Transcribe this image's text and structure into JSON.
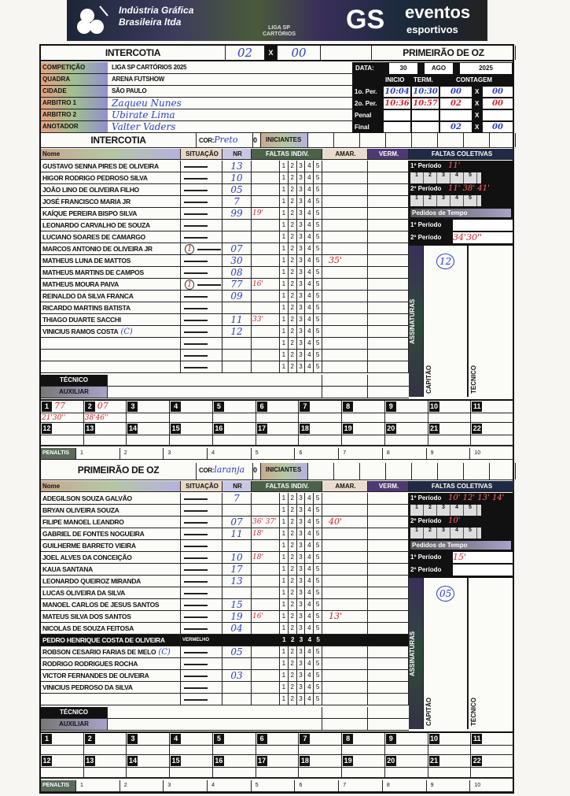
{
  "banner": {
    "company": "Indústria Gráfica Brasileira ltda",
    "center_logo": "LIGA SP CARTÓRIOS",
    "right_logo_big": "GS",
    "right_logo_1": "eventos",
    "right_logo_2": "esportivos"
  },
  "match": {
    "home": "INTERCOTIA",
    "home_score": "02",
    "x": "X",
    "away_score": "00",
    "away": "PRIMEIRÃO DE OZ"
  },
  "info": [
    {
      "label": "COMPETIÇÃO",
      "value": "LIGA SP CARTÓRIOS 2025"
    },
    {
      "label": "QUADRA",
      "value": "ARENA FUTSHOW"
    },
    {
      "label": "CIDADE",
      "value": "SÃO PAULO"
    },
    {
      "label": "ARBITRO 1",
      "value": "Zaqueu Nunes"
    },
    {
      "label": "ARBITRO 2",
      "value": "Ubirate Lima"
    },
    {
      "label": "ANOTADOR",
      "value": "Valter Vaders"
    }
  ],
  "date": {
    "label": "DATA:",
    "day": "30",
    "month": "AGO",
    "year": "2025",
    "inicio": "INICIO",
    "term": "TERM.",
    "contagem": "CONTAGEM"
  },
  "periods": [
    {
      "label": "1o. Per.",
      "inicio": "10:04",
      "term": "10:30",
      "home": "00",
      "away": "00"
    },
    {
      "label": "2o. Per.",
      "inicio": "10:36",
      "term": "10:57",
      "home": "02",
      "away": "00"
    },
    {
      "label": "Penal",
      "inicio": "",
      "term": "",
      "home": "",
      "away": ""
    },
    {
      "label": "Final",
      "inicio": "",
      "term": "",
      "home": "02",
      "away": "00"
    }
  ],
  "labels": {
    "cor": "COR:",
    "zero": "0",
    "iniciantes": "INICIANTES",
    "nome": "Nome",
    "situacao": "SITUAÇÃO",
    "nr": "NR",
    "faltas_indiv": "FALTAS INDIV.",
    "amar": "AMAR.",
    "verm": "VERM.",
    "faltas_coletivas": "FALTAS COLETIVAS",
    "p1": "1º Período",
    "p2": "2º Período",
    "pedidos": "Pedidos de Tempo",
    "assinaturas": "ASSINATURAS",
    "capitao": "CAPITÃO",
    "tecnico_v": "TÉCNICO",
    "tecnico": "TÉCNICO",
    "auxiliar": "AUXILIAR",
    "penaltis": "PENALTIS",
    "vermelho": "VERMELHO"
  },
  "team_a": {
    "name": "INTERCOTIA",
    "cor": "Preto",
    "players": [
      {
        "name": "GUSTAVO SENNA PIRES DE OLIVEIRA",
        "nr": "13"
      },
      {
        "name": "HIGOR RODRIGO PEDROSO SILVA",
        "nr": "10"
      },
      {
        "name": "JOÃO LINO DE OLIVEIRA FILHO",
        "nr": "05"
      },
      {
        "name": "JOSÉ FRANCISCO MARIA JR",
        "nr": "7"
      },
      {
        "name": "KAÍQUE PEREIRA BISPO SILVA",
        "nr": "99",
        "falta": "19'"
      },
      {
        "name": "LEONARDO CARVALHO DE SOUZA",
        "nr": ""
      },
      {
        "name": "LUCIANO SOARES DE CAMARGO",
        "nr": ""
      },
      {
        "name": "MARCOS ANTONIO DE OLIVEIRA JR",
        "nr": "07",
        "sit": "1"
      },
      {
        "name": "MATHEUS LUNA DE MATTOS",
        "nr": "30",
        "amar": "35'"
      },
      {
        "name": "MATHEUS MARTINS DE CAMPOS",
        "nr": "08"
      },
      {
        "name": "MATHEUS MOURA PAIVA",
        "nr": "77",
        "sit": "1",
        "falta": "16'"
      },
      {
        "name": "REINALDO DA SILVA FRANCA",
        "nr": "09"
      },
      {
        "name": "RICARDO MARTINS BATISTA",
        "nr": ""
      },
      {
        "name": "THIAGO DUARTE SACCHI",
        "nr": "11",
        "falta": "33'"
      },
      {
        "name": "VINICIUS RAMOS COSTA",
        "cap": "(C)",
        "nr": "12"
      },
      {
        "name": "",
        "nr": ""
      },
      {
        "name": "",
        "nr": ""
      },
      {
        "name": "",
        "nr": ""
      }
    ],
    "coletivas_p1": "11'",
    "coletivas_p2": "11' 38' 41'",
    "tempo_p1": "",
    "tempo_p2": "34'30''",
    "capitao_sig": "12",
    "goals": [
      {
        "n": "1",
        "player": "77",
        "time": "21'30''"
      },
      {
        "n": "2",
        "player": "07",
        "time": "38'46''"
      }
    ]
  },
  "team_b": {
    "name": "PRIMEIRÃO DE OZ",
    "cor": "laranja",
    "players": [
      {
        "name": "ADEGILSON SOUZA GALVÃO",
        "nr": "7"
      },
      {
        "name": "BRYAN OLIVEIRA SOUZA",
        "nr": ""
      },
      {
        "name": "FILIPE MANOEL LEANDRO",
        "nr": "07",
        "falta": "36' 37'",
        "amar": "40'"
      },
      {
        "name": "GABRIEL DE FONTES NOGUEIRA",
        "nr": "11",
        "falta": "18'"
      },
      {
        "name": "GUILHERME BARRETO VIEIRA",
        "nr": ""
      },
      {
        "name": "JOEL ALVES DA CONCEIÇÃO",
        "nr": "10",
        "falta": "18'"
      },
      {
        "name": "KAUA SANTANA",
        "nr": "17"
      },
      {
        "name": "LEONARDO QUEIROZ MIRANDA",
        "nr": "13"
      },
      {
        "name": "LUCAS OLIVEIRA DA SILVA",
        "nr": ""
      },
      {
        "name": "MANOEL CARLOS DE JESUS SANTOS",
        "nr": "15"
      },
      {
        "name": "MATEUS SILVA DOS SANTOS",
        "nr": "19",
        "falta": "16'",
        "amar": "13'"
      },
      {
        "name": "NICOLAS DE SOUZA FEITOSA",
        "nr": "04"
      },
      {
        "name": "PEDRO HENRIQUE COSTA DE OLIVEIRA",
        "nr": "",
        "dark": true
      },
      {
        "name": "ROBSON CESARIO FARIAS DE MELO",
        "cap": "(C)",
        "nr": "05"
      },
      {
        "name": "RODRIGO RODRIGUES ROCHA",
        "nr": ""
      },
      {
        "name": "VICTOR FERNANDES DE OLIVEIRA",
        "nr": "03"
      },
      {
        "name": "VINICIUS PEDROSO DA SILVA",
        "nr": ""
      },
      {
        "name": "",
        "nr": ""
      }
    ],
    "coletivas_p1": "10' 12' 13' 14'",
    "coletivas_p2": "10'",
    "tempo_p1": "15'",
    "tempo_p2": "",
    "capitao_sig": "05",
    "goals": []
  }
}
